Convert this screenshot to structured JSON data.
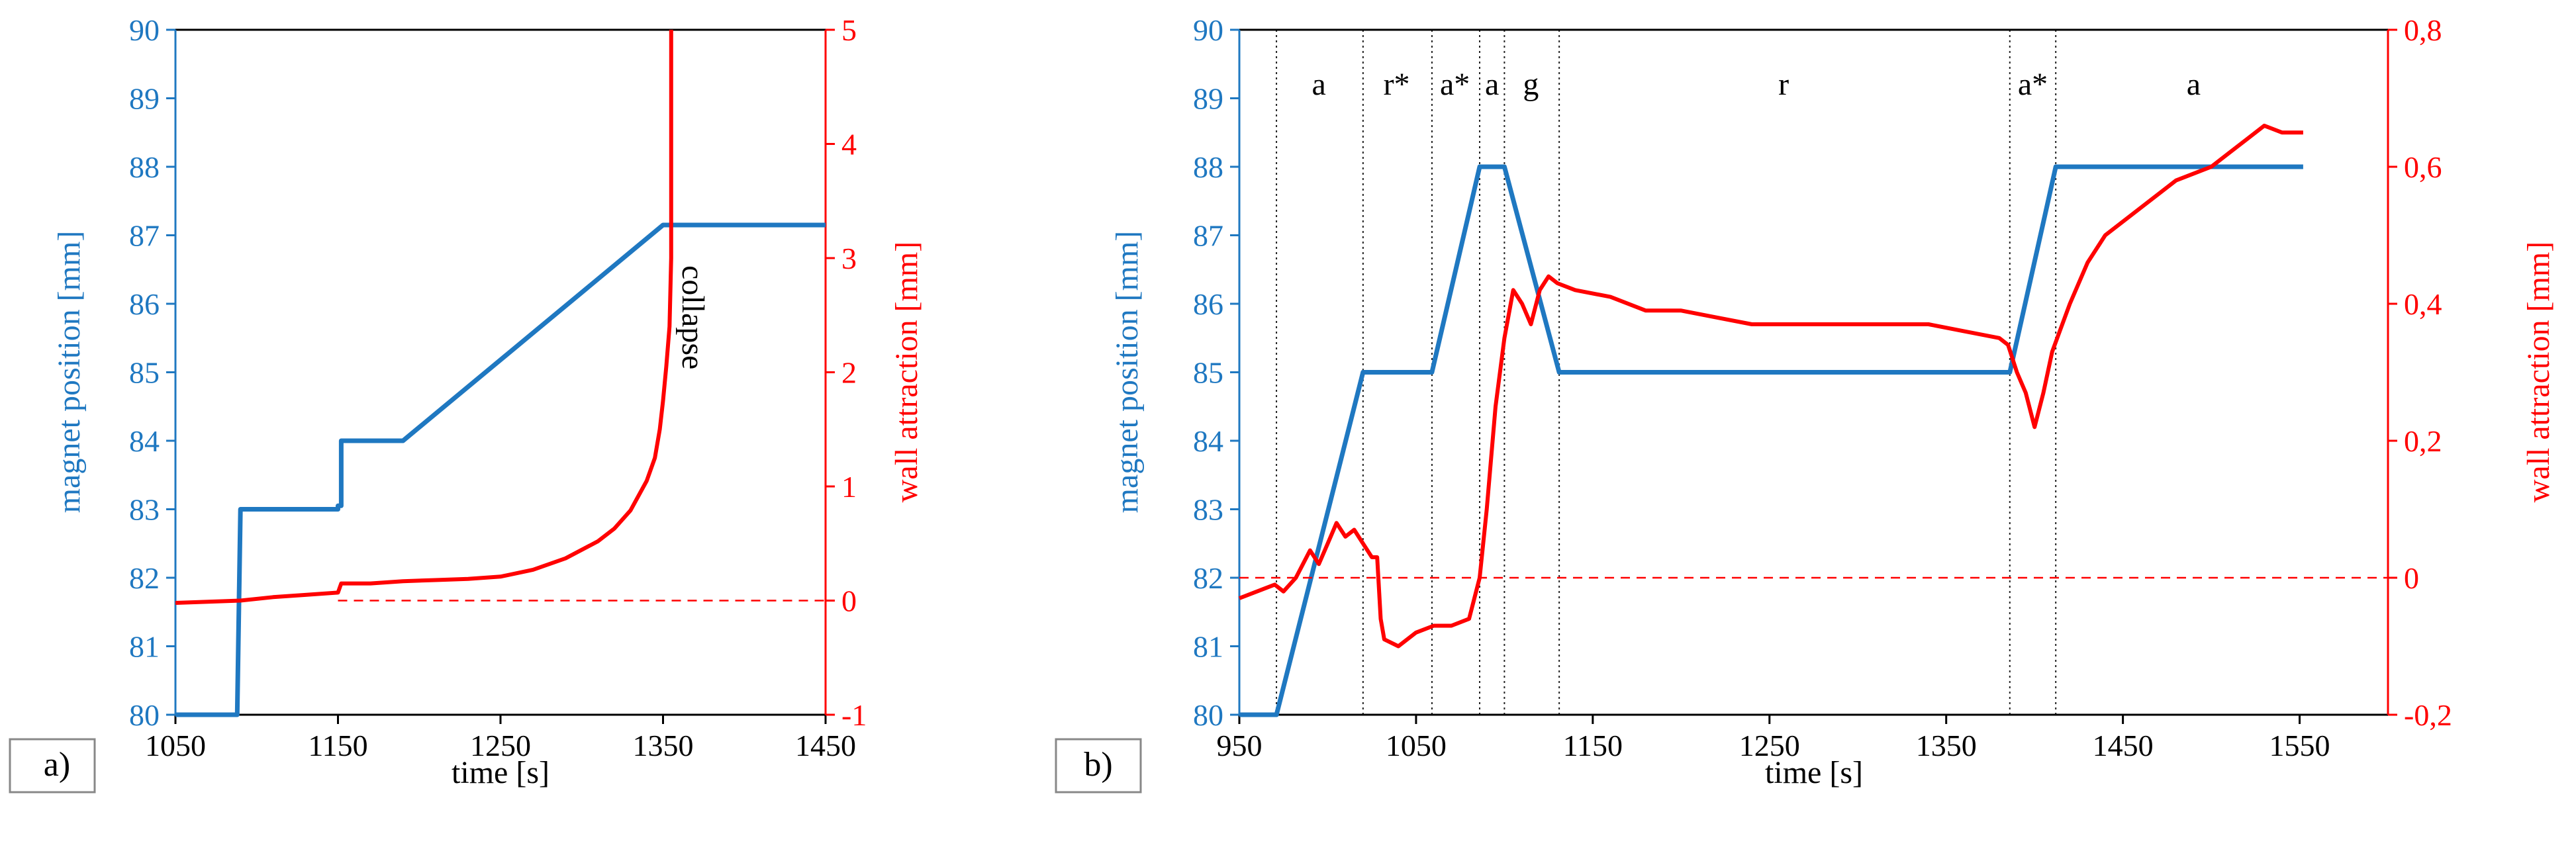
{
  "chart_data": [
    {
      "type": "line",
      "panel_label": "a)",
      "xlabel": "time [s]",
      "ylabel_left": "magnet position [mm]",
      "ylabel_right": "wall attraction [mm]",
      "xlim": [
        1050,
        1450
      ],
      "x_ticks": [
        "1050",
        "1150",
        "1250",
        "1350",
        "1450"
      ],
      "ylim_left": [
        80,
        90
      ],
      "left_ticks": [
        "80",
        "81",
        "82",
        "83",
        "84",
        "85",
        "86",
        "87",
        "88",
        "89",
        "90"
      ],
      "ylim_right": [
        -1,
        5
      ],
      "right_ticks": [
        "-1",
        "0",
        "1",
        "2",
        "3",
        "4",
        "5"
      ],
      "grid": false,
      "colors": {
        "magnet": "#1f78c1",
        "wall": "#ff0000"
      },
      "annotations": [
        {
          "text": "collapse",
          "x": 1362,
          "y_left": 85.8
        }
      ],
      "series": [
        {
          "axis": "left",
          "x": [
            1050,
            1086,
            1088,
            1090,
            1150,
            1150,
            1152,
            1152,
            1190,
            1350,
            1350,
            1360,
            1450
          ],
          "y": [
            80,
            80,
            80,
            83,
            83,
            83.05,
            83.05,
            84,
            84,
            87.15,
            87.15,
            87.15,
            87.15
          ]
        },
        {
          "axis": "right",
          "x": [
            1050,
            1070,
            1090,
            1110,
            1130,
            1150,
            1152,
            1170,
            1190,
            1210,
            1230,
            1250,
            1270,
            1290,
            1310,
            1320,
            1330,
            1340,
            1345,
            1348,
            1350,
            1352,
            1354,
            1355,
            1355,
            1355
          ],
          "y": [
            -0.02,
            -0.01,
            0.0,
            0.03,
            0.05,
            0.07,
            0.15,
            0.15,
            0.17,
            0.18,
            0.19,
            0.21,
            0.27,
            0.37,
            0.52,
            0.63,
            0.79,
            1.05,
            1.25,
            1.5,
            1.75,
            2.05,
            2.4,
            3.0,
            4.0,
            5.0
          ]
        },
        {
          "axis": "right",
          "style": "dashed",
          "x": [
            1150,
            1450
          ],
          "y": [
            0,
            0
          ]
        }
      ]
    },
    {
      "type": "line",
      "panel_label": "b)",
      "xlabel": "time [s]",
      "ylabel_left": "magnet position [mm]",
      "ylabel_right": "wall attraction [mm]",
      "xlim": [
        950,
        1600
      ],
      "x_ticks": [
        "950",
        "1050",
        "1150",
        "1250",
        "1350",
        "1450",
        "1550"
      ],
      "ylim_left": [
        80,
        90
      ],
      "left_ticks": [
        "80",
        "81",
        "82",
        "83",
        "84",
        "85",
        "86",
        "87",
        "88",
        "89",
        "90"
      ],
      "ylim_right": [
        -0.2,
        0.8
      ],
      "right_ticks": [
        "-0,2",
        "0",
        "0,2",
        "0,4",
        "0,6",
        "0,8"
      ],
      "grid": false,
      "colors": {
        "magnet": "#1f78c1",
        "wall": "#ff0000"
      },
      "phase_lines_x": [
        971,
        1020,
        1059,
        1086,
        1100,
        1131,
        1386,
        1412
      ],
      "phases": [
        {
          "label": "a",
          "x": 995
        },
        {
          "label": "r*",
          "x": 1039
        },
        {
          "label": "a*",
          "x": 1072
        },
        {
          "label": "a",
          "x": 1093
        },
        {
          "label": "g",
          "x": 1115
        },
        {
          "label": "r",
          "x": 1258
        },
        {
          "label": "a*",
          "x": 1399
        },
        {
          "label": "a",
          "x": 1490
        }
      ],
      "series": [
        {
          "axis": "left",
          "x": [
            950,
            971,
            1020,
            1059,
            1086,
            1100,
            1131,
            1386,
            1412,
            1552
          ],
          "y": [
            80,
            80,
            85,
            85,
            88,
            88,
            85,
            85,
            88,
            88
          ]
        },
        {
          "axis": "right",
          "x": [
            950,
            960,
            970,
            975,
            982,
            990,
            995,
            1000,
            1005,
            1010,
            1015,
            1020,
            1025,
            1028,
            1030,
            1032,
            1040,
            1050,
            1060,
            1070,
            1080,
            1086,
            1090,
            1095,
            1100,
            1105,
            1110,
            1115,
            1120,
            1125,
            1130,
            1140,
            1160,
            1180,
            1200,
            1220,
            1240,
            1260,
            1280,
            1300,
            1320,
            1340,
            1360,
            1380,
            1385,
            1390,
            1395,
            1400,
            1405,
            1410,
            1420,
            1430,
            1440,
            1460,
            1480,
            1500,
            1510,
            1520,
            1530,
            1540,
            1552
          ],
          "y": [
            -0.03,
            -0.02,
            -0.01,
            -0.02,
            0.0,
            0.04,
            0.02,
            0.05,
            0.08,
            0.06,
            0.07,
            0.05,
            0.03,
            0.03,
            -0.06,
            -0.09,
            -0.1,
            -0.08,
            -0.07,
            -0.07,
            -0.06,
            0.0,
            0.1,
            0.25,
            0.35,
            0.42,
            0.4,
            0.37,
            0.42,
            0.44,
            0.43,
            0.42,
            0.41,
            0.39,
            0.39,
            0.38,
            0.37,
            0.37,
            0.37,
            0.37,
            0.37,
            0.37,
            0.36,
            0.35,
            0.34,
            0.3,
            0.27,
            0.22,
            0.27,
            0.33,
            0.4,
            0.46,
            0.5,
            0.54,
            0.58,
            0.6,
            0.62,
            0.64,
            0.66,
            0.65,
            0.65
          ]
        },
        {
          "axis": "right",
          "style": "dashed",
          "x": [
            950,
            1600
          ],
          "y": [
            0,
            0
          ]
        }
      ]
    }
  ]
}
